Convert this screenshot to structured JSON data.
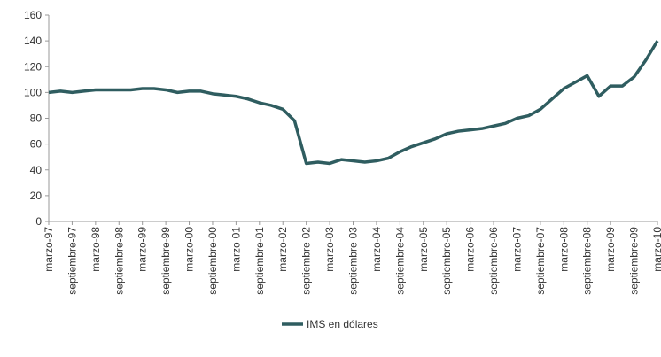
{
  "chart_data": {
    "type": "line",
    "categories": [
      "marzo-97",
      null,
      "septiembre-97",
      null,
      "marzo-98",
      null,
      "septiembre-98",
      null,
      "marzo-99",
      null,
      "septiembre-99",
      null,
      "marzo-00",
      null,
      "septiembre-00",
      null,
      "marzo-01",
      null,
      "septiembre-01",
      null,
      "marzo-02",
      null,
      "septiembre-02",
      null,
      "marzo-03",
      null,
      "septiembre-03",
      null,
      "marzo-04",
      null,
      "septiembre-04",
      null,
      "marzo-05",
      null,
      "septiembre-05",
      null,
      "marzo-06",
      null,
      "septiembre-06",
      null,
      "marzo-07",
      null,
      "septiembre-07",
      null,
      "marzo-08",
      null,
      "septiembre-08",
      null,
      "marzo-09",
      null,
      "septiembre-09",
      null,
      "marzo-10"
    ],
    "series": [
      {
        "name": "IMS en dólares",
        "color": "#2f5d60",
        "values": [
          100,
          101,
          100,
          101,
          102,
          102,
          102,
          102,
          103,
          103,
          102,
          100,
          101,
          101,
          99,
          98,
          97,
          95,
          92,
          90,
          87,
          78,
          45,
          46,
          45,
          48,
          47,
          46,
          47,
          49,
          54,
          58,
          61,
          64,
          68,
          70,
          71,
          72,
          74,
          76,
          80,
          82,
          87,
          95,
          103,
          108,
          113,
          97,
          105,
          105,
          112,
          125,
          140
        ]
      }
    ],
    "ylim": [
      0,
      160
    ],
    "yticks": [
      0,
      20,
      40,
      60,
      80,
      100,
      120,
      140,
      160
    ],
    "grid": false,
    "legend": "bottom"
  }
}
